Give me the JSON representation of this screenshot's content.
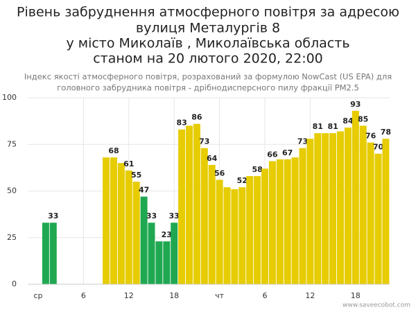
{
  "chart_data": {
    "type": "bar",
    "title": [
      "Рівень забруднення атмосферного повітря за адресою",
      "вулиця Металургів 8",
      "у місто Миколаїв , Миколаївська область",
      "станом на 20 лютого 2020, 22:00"
    ],
    "subtitle": [
      "Індекс якості атмосферного повітря, розрахований за формулою NowCast (US EPA) для",
      "головного забрудника повітря - дрібнодисперсного пилу фракції PM2.5"
    ],
    "source": "www.saveecobot.com",
    "categories": [
      "ср",
      null,
      null,
      null,
      null,
      null,
      "6",
      null,
      null,
      null,
      null,
      null,
      "12",
      null,
      null,
      null,
      null,
      null,
      "18",
      null,
      null,
      null,
      null,
      null,
      "чт",
      null,
      null,
      null,
      null,
      null,
      "6",
      null,
      null,
      null,
      null,
      null,
      "12",
      null,
      null,
      null,
      null,
      null,
      "18",
      null,
      null,
      null,
      null
    ],
    "values": [
      null,
      33,
      33,
      null,
      null,
      null,
      null,
      null,
      null,
      68,
      68,
      65,
      61,
      55,
      47,
      33,
      23,
      23,
      33,
      83,
      85,
      86,
      73,
      64,
      56,
      52,
      51,
      52,
      58,
      58,
      62,
      66,
      67,
      67,
      68,
      73,
      78,
      81,
      81,
      81,
      82,
      84,
      93,
      85,
      76,
      70,
      78
    ],
    "value_labels": [
      null,
      null,
      "33",
      null,
      null,
      null,
      null,
      null,
      null,
      null,
      "68",
      null,
      "61",
      "55",
      "47",
      "33",
      null,
      "23",
      "33",
      "83",
      null,
      "86",
      "73",
      "64",
      "56",
      null,
      null,
      "52",
      null,
      "58",
      null,
      "66",
      null,
      "67",
      null,
      "73",
      null,
      "81",
      null,
      "81",
      null,
      "84",
      "93",
      "85",
      "76",
      "70",
      "78"
    ],
    "colors": [
      null,
      "#1fa851",
      "#1fa851",
      null,
      null,
      null,
      null,
      null,
      null,
      "#e6cc00",
      "#e6cc00",
      "#e6cc00",
      "#e6cc00",
      "#e6cc00",
      "#1fa851",
      "#1fa851",
      "#1fa851",
      "#1fa851",
      "#1fa851",
      "#e6cc00",
      "#e6cc00",
      "#e6cc00",
      "#e6cc00",
      "#e6cc00",
      "#e6cc00",
      "#e6cc00",
      "#e6cc00",
      "#e6cc00",
      "#e6cc00",
      "#e6cc00",
      "#e6cc00",
      "#e6cc00",
      "#e6cc00",
      "#e6cc00",
      "#e6cc00",
      "#e6cc00",
      "#e6cc00",
      "#e6cc00",
      "#e6cc00",
      "#e6cc00",
      "#e6cc00",
      "#e6cc00",
      "#e6cc00",
      "#e6cc00",
      "#e6cc00",
      "#e6cc00",
      "#e6cc00"
    ],
    "ylim": [
      0,
      100
    ],
    "yticks": [
      0,
      25,
      50,
      75,
      100
    ],
    "grid": true
  }
}
